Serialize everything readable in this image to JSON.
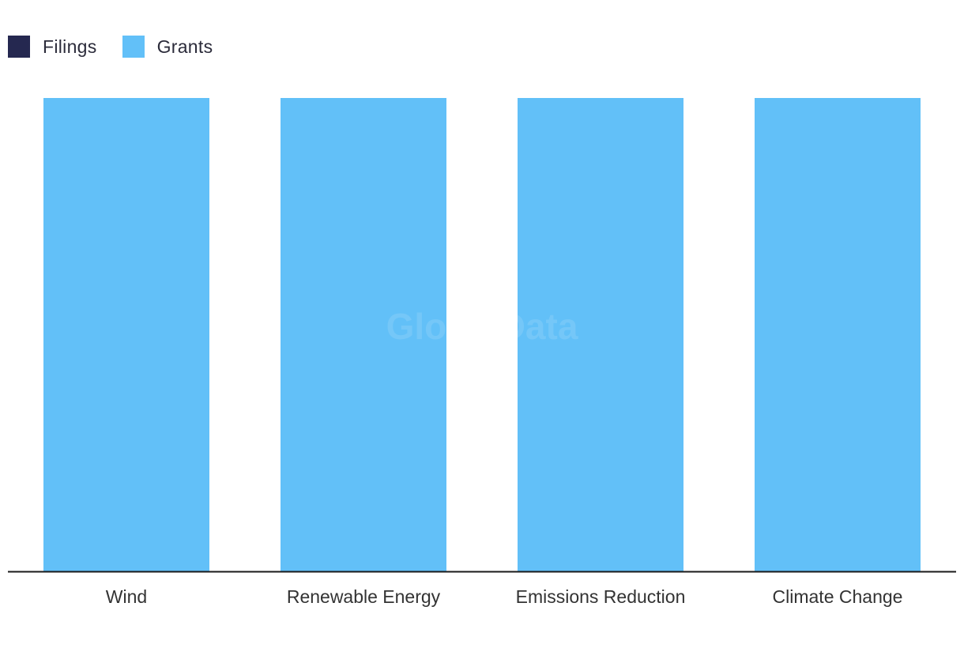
{
  "chart_data": {
    "type": "bar",
    "categories": [
      "Wind",
      "Renewable Energy",
      "Emissions Reduction",
      "Climate Change"
    ],
    "series": [
      {
        "name": "Filings",
        "values": [
          0,
          0,
          0,
          0
        ],
        "color": "#252850"
      },
      {
        "name": "Grants",
        "values": [
          1,
          1,
          1,
          1
        ],
        "color": "#62c0f8"
      }
    ],
    "stacked": true,
    "ylim": [
      0,
      1
    ],
    "grid": false,
    "legend_position": "top-left",
    "axis_color": "#1a1a1a",
    "label_color": "#333333"
  },
  "legend": [
    {
      "label": "Filings",
      "color": "#252850"
    },
    {
      "label": "Grants",
      "color": "#62c0f8"
    }
  ],
  "watermark": "GlobalData"
}
